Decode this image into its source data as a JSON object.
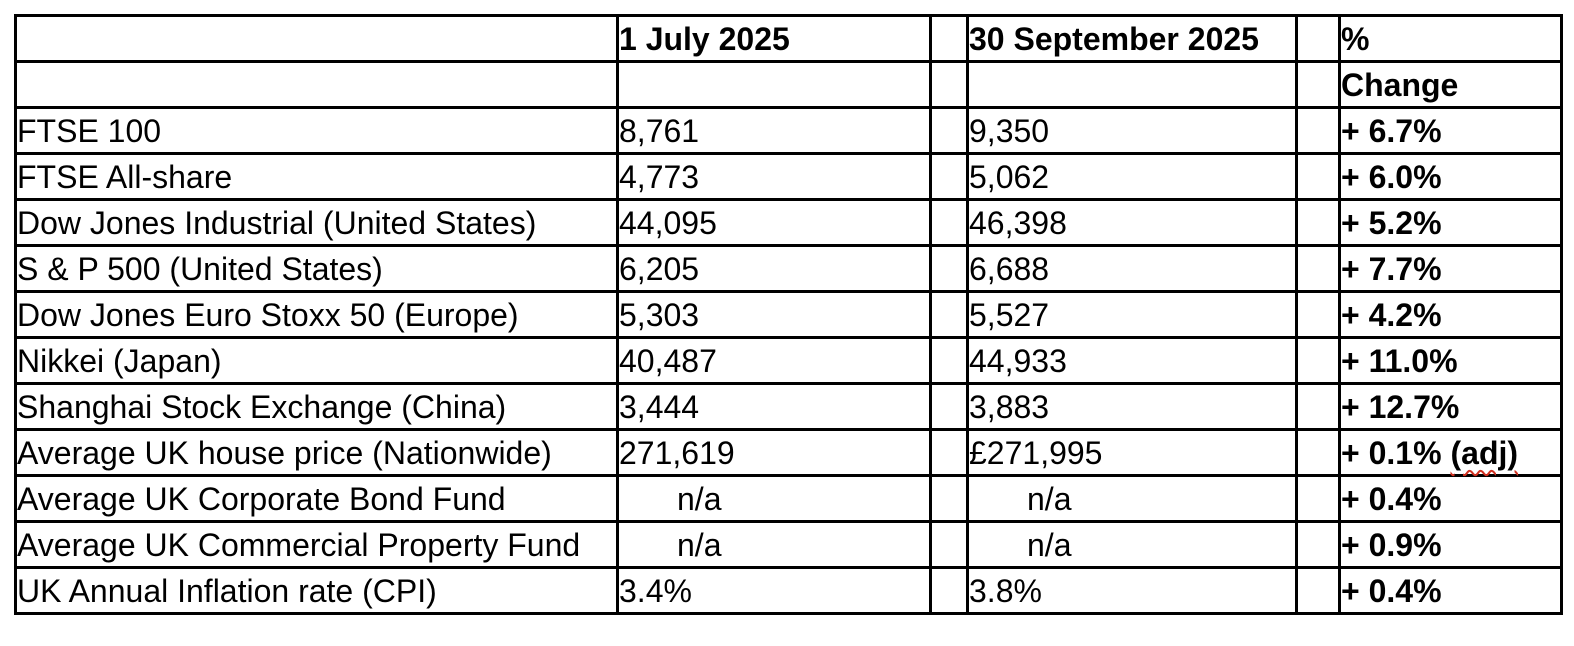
{
  "page": {
    "background_color": "#ffffff",
    "border_color": "#000000",
    "text_color": "#000000",
    "squiggle_color": "#d03020"
  },
  "table": {
    "headers": {
      "label": "",
      "date1": "1 July 2025",
      "date2": "30 September 2025",
      "pct": "%",
      "change": "Change"
    },
    "rows": [
      {
        "label": "FTSE 100",
        "jul": "8,761",
        "sep": "9,350",
        "change": "+  6.7%"
      },
      {
        "label": "FTSE All-share",
        "jul": "4,773",
        "sep": "5,062",
        "change": "+  6.0%"
      },
      {
        "label": "Dow Jones Industrial (United States)",
        "jul": "44,095",
        "sep": "46,398",
        "change": "+  5.2%"
      },
      {
        "label": "S & P 500 (United States)",
        "jul": "6,205",
        "sep": "6,688",
        "change": "+  7.7%"
      },
      {
        "label": "Dow Jones Euro Stoxx 50 (Europe)",
        "jul": "5,303",
        "sep": "5,527",
        "change": "+  4.2%"
      },
      {
        "label": "Nikkei (Japan)",
        "jul": "40,487",
        "sep": "44,933",
        "change": "+ 11.0%"
      },
      {
        "label": "Shanghai Stock Exchange (China)",
        "jul": "3,444",
        "sep": "3,883",
        "change": "+  12.7%"
      },
      {
        "label": "Average UK house price (Nationwide)",
        "jul": "271,619",
        "sep": "£271,995",
        "change": "+  0.1%",
        "change_note": "(adj)",
        "note_style": "spellcheck-squiggle"
      },
      {
        "label": "Average UK Corporate Bond Fund",
        "jul": "n/a",
        "sep": "n/a",
        "change": "+  0.4%"
      },
      {
        "label": "Average UK Commercial Property Fund",
        "jul": "n/a",
        "sep": "n/a",
        "change": "+  0.9%"
      },
      {
        "label": "UK Annual Inflation rate (CPI)",
        "jul": "3.4%",
        "sep": "3.8%",
        "change": "+  0.4%"
      }
    ]
  }
}
